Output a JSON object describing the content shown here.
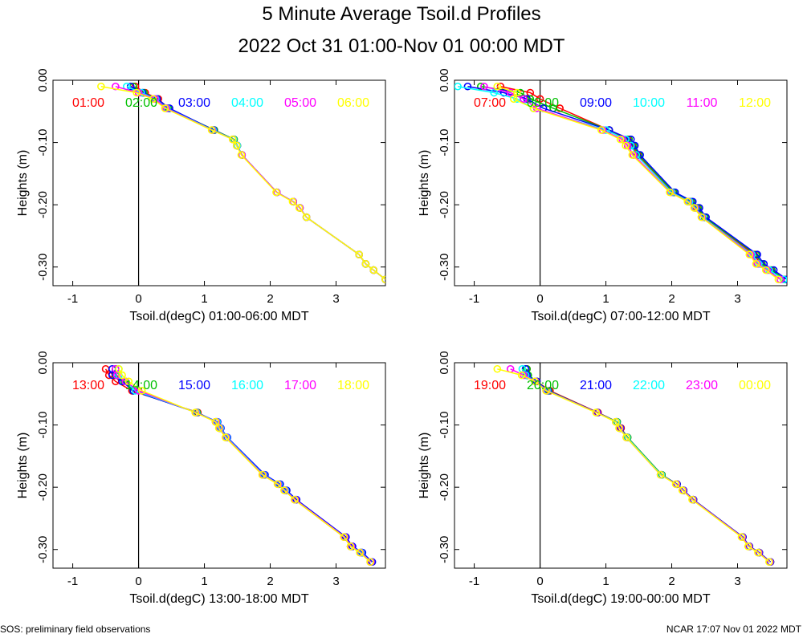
{
  "page": {
    "title": "5 Minute Average Tsoil.d Profiles",
    "subtitle": "2022 Oct 31 01:00-Nov 01 00:00 MDT",
    "footer_left": "SOS: preliminary field observations",
    "footer_right": "NCAR 17:07 Nov 01 2022 MDT"
  },
  "chart_data": [
    {
      "type": "line",
      "xlabel": "Tsoil.d(degC) 01:00-06:00 MDT",
      "ylabel": "Heights (m)",
      "xlim": [
        -1.3,
        3.75
      ],
      "ylim": [
        -0.33,
        0.0
      ],
      "xticks": [
        -1,
        0,
        1,
        2,
        3
      ],
      "yticks": [
        0.0,
        -0.1,
        -0.2,
        -0.3
      ],
      "ytick_labels": [
        "0.00",
        "-0.10",
        "-0.20",
        "-0.30"
      ],
      "heights": [
        -0.01,
        -0.02,
        -0.03,
        -0.045,
        -0.08,
        -0.095,
        -0.105,
        -0.12,
        -0.18,
        -0.195,
        -0.205,
        -0.22,
        -0.28,
        -0.295,
        -0.305,
        -0.32
      ],
      "series": [
        {
          "name": "01:00",
          "color": "#ff0000",
          "x": [
            -0.05,
            0.1,
            0.3,
            0.45,
            1.15,
            1.45,
            1.5,
            1.57,
            2.1,
            2.35,
            2.45,
            2.55,
            3.35,
            3.45,
            3.57,
            3.75
          ]
        },
        {
          "name": "02:00",
          "color": "#00c000",
          "x": [
            -0.08,
            0.08,
            0.28,
            0.45,
            1.15,
            1.45,
            1.5,
            1.57,
            2.1,
            2.35,
            2.45,
            2.55,
            3.35,
            3.45,
            3.57,
            3.75
          ]
        },
        {
          "name": "03:00",
          "color": "#0000ff",
          "x": [
            -0.12,
            0.06,
            0.28,
            0.47,
            1.14,
            1.44,
            1.5,
            1.57,
            2.1,
            2.35,
            2.45,
            2.55,
            3.35,
            3.45,
            3.57,
            3.75
          ]
        },
        {
          "name": "04:00",
          "color": "#00ffff",
          "x": [
            -0.18,
            0.04,
            0.26,
            0.43,
            1.13,
            1.44,
            1.5,
            1.57,
            2.1,
            2.35,
            2.45,
            2.55,
            3.35,
            3.45,
            3.57,
            3.75
          ]
        },
        {
          "name": "05:00",
          "color": "#ff00ff",
          "x": [
            -0.35,
            0.0,
            0.25,
            0.42,
            1.12,
            1.43,
            1.49,
            1.57,
            2.1,
            2.35,
            2.45,
            2.55,
            3.35,
            3.45,
            3.57,
            3.75
          ]
        },
        {
          "name": "06:00",
          "color": "#ffff00",
          "x": [
            -0.57,
            -0.03,
            0.22,
            0.4,
            1.11,
            1.43,
            1.49,
            1.56,
            2.09,
            2.34,
            2.44,
            2.55,
            3.35,
            3.45,
            3.57,
            3.75
          ]
        }
      ]
    },
    {
      "type": "line",
      "xlabel": "Tsoil.d(degC) 07:00-12:00 MDT",
      "ylabel": "Heights (m)",
      "xlim": [
        -1.3,
        3.75
      ],
      "ylim": [
        -0.33,
        0.0
      ],
      "xticks": [
        -1,
        0,
        1,
        2,
        3
      ],
      "yticks": [
        0.0,
        -0.1,
        -0.2,
        -0.3
      ],
      "ytick_labels": [
        "0.00",
        "-0.10",
        "-0.20",
        "-0.30"
      ],
      "heights": [
        -0.01,
        -0.02,
        -0.03,
        -0.045,
        -0.08,
        -0.095,
        -0.105,
        -0.12,
        -0.18,
        -0.195,
        -0.205,
        -0.22,
        -0.28,
        -0.295,
        -0.305,
        -0.32
      ],
      "series": [
        {
          "name": "07:00",
          "color": "#ff0000",
          "x": [
            -0.6,
            -0.15,
            0.0,
            0.3,
            1.05,
            1.33,
            1.4,
            1.48,
            2.02,
            2.28,
            2.38,
            2.5,
            3.25,
            3.35,
            3.5,
            3.7
          ]
        },
        {
          "name": "08:00",
          "color": "#00c000",
          "x": [
            -0.9,
            -0.3,
            -0.15,
            0.2,
            1.05,
            1.35,
            1.42,
            1.5,
            2.03,
            2.3,
            2.4,
            2.5,
            3.28,
            3.37,
            3.52,
            3.72
          ]
        },
        {
          "name": "09:00",
          "color": "#0000ff",
          "x": [
            -1.1,
            -0.55,
            -0.2,
            0.05,
            1.05,
            1.38,
            1.44,
            1.52,
            2.05,
            2.32,
            2.42,
            2.52,
            3.3,
            3.4,
            3.55,
            3.75
          ]
        },
        {
          "name": "10:00",
          "color": "#00ffff",
          "x": [
            -1.25,
            -0.7,
            -0.35,
            -0.1,
            1.0,
            1.3,
            1.38,
            1.46,
            2.0,
            2.27,
            2.36,
            2.47,
            3.22,
            3.32,
            3.48,
            3.7
          ]
        },
        {
          "name": "11:00",
          "color": "#ff00ff",
          "x": [
            -0.85,
            -0.45,
            -0.25,
            -0.05,
            0.95,
            1.25,
            1.33,
            1.42,
            1.98,
            2.25,
            2.35,
            2.46,
            3.2,
            3.3,
            3.45,
            3.65
          ]
        },
        {
          "name": "12:00",
          "color": "#ffff00",
          "x": [
            -0.65,
            -0.35,
            -0.4,
            -0.1,
            0.93,
            1.22,
            1.3,
            1.4,
            1.97,
            2.24,
            2.34,
            2.45,
            3.18,
            3.28,
            3.43,
            3.62
          ]
        }
      ]
    },
    {
      "type": "line",
      "xlabel": "Tsoil.d(degC) 13:00-18:00 MDT",
      "ylabel": "Heights (m)",
      "xlim": [
        -1.3,
        3.75
      ],
      "ylim": [
        -0.33,
        0.0
      ],
      "xticks": [
        -1,
        0,
        1,
        2,
        3
      ],
      "yticks": [
        0.0,
        -0.1,
        -0.2,
        -0.3
      ],
      "ytick_labels": [
        "0.00",
        "-0.10",
        "-0.20",
        "-0.30"
      ],
      "heights": [
        -0.01,
        -0.02,
        -0.03,
        -0.045,
        -0.08,
        -0.095,
        -0.105,
        -0.12,
        -0.18,
        -0.195,
        -0.205,
        -0.22,
        -0.28,
        -0.295,
        -0.305,
        -0.32
      ],
      "series": [
        {
          "name": "13:00",
          "color": "#ff0000",
          "x": [
            -0.5,
            -0.45,
            -0.35,
            -0.1,
            0.9,
            1.17,
            1.23,
            1.33,
            1.88,
            2.12,
            2.22,
            2.37,
            3.12,
            3.22,
            3.37,
            3.52
          ]
        },
        {
          "name": "14:00",
          "color": "#00c000",
          "x": [
            -0.35,
            -0.35,
            -0.22,
            -0.08,
            0.89,
            1.18,
            1.24,
            1.34,
            1.9,
            2.14,
            2.24,
            2.39,
            3.14,
            3.24,
            3.39,
            3.54
          ]
        },
        {
          "name": "15:00",
          "color": "#0000ff",
          "x": [
            -0.4,
            -0.4,
            -0.25,
            -0.08,
            0.88,
            1.2,
            1.25,
            1.35,
            1.92,
            2.15,
            2.25,
            2.4,
            3.15,
            3.25,
            3.4,
            3.55
          ]
        },
        {
          "name": "16:00",
          "color": "#00ffff",
          "x": [
            -0.3,
            -0.3,
            -0.2,
            -0.05,
            0.88,
            1.19,
            1.24,
            1.34,
            1.9,
            2.13,
            2.23,
            2.38,
            3.13,
            3.23,
            3.38,
            3.53
          ]
        },
        {
          "name": "17:00",
          "color": "#ff00ff",
          "x": [
            -0.35,
            -0.33,
            -0.2,
            0.0,
            0.87,
            1.18,
            1.23,
            1.33,
            1.89,
            2.12,
            2.22,
            2.38,
            3.13,
            3.23,
            3.37,
            3.53
          ]
        },
        {
          "name": "18:00",
          "color": "#ffff00",
          "x": [
            -0.3,
            -0.25,
            -0.15,
            0.05,
            0.86,
            1.17,
            1.22,
            1.32,
            1.88,
            2.11,
            2.21,
            2.37,
            3.12,
            3.22,
            3.36,
            3.52
          ]
        }
      ]
    },
    {
      "type": "line",
      "xlabel": "Tsoil.d(degC) 19:00-00:00 MDT",
      "ylabel": "Heights (m)",
      "xlim": [
        -1.3,
        3.75
      ],
      "ylim": [
        -0.33,
        0.0
      ],
      "xticks": [
        -1,
        0,
        1,
        2,
        3
      ],
      "yticks": [
        0.0,
        -0.1,
        -0.2,
        -0.3
      ],
      "ytick_labels": [
        "0.00",
        "-0.10",
        "-0.20",
        "-0.30"
      ],
      "heights": [
        -0.01,
        -0.02,
        -0.03,
        -0.045,
        -0.08,
        -0.095,
        -0.105,
        -0.12,
        -0.18,
        -0.195,
        -0.205,
        -0.22,
        -0.28,
        -0.295,
        -0.305,
        -0.32
      ],
      "series": [
        {
          "name": "19:00",
          "color": "#ff0000",
          "x": [
            -0.2,
            -0.2,
            -0.05,
            0.15,
            0.88,
            1.17,
            1.23,
            1.33,
            1.85,
            2.08,
            2.18,
            2.33,
            3.08,
            3.18,
            3.33,
            3.5
          ]
        },
        {
          "name": "20:00",
          "color": "#00c000",
          "x": [
            -0.2,
            -0.18,
            -0.05,
            0.13,
            0.87,
            1.17,
            1.22,
            1.33,
            1.85,
            2.08,
            2.18,
            2.33,
            3.08,
            3.18,
            3.33,
            3.5
          ]
        },
        {
          "name": "21:00",
          "color": "#0000ff",
          "x": [
            -0.22,
            -0.2,
            -0.05,
            0.12,
            0.87,
            1.16,
            1.22,
            1.32,
            1.84,
            2.08,
            2.18,
            2.33,
            3.08,
            3.18,
            3.33,
            3.5
          ]
        },
        {
          "name": "22:00",
          "color": "#00ffff",
          "x": [
            -0.27,
            -0.22,
            -0.07,
            0.11,
            0.86,
            1.16,
            1.21,
            1.32,
            1.84,
            2.07,
            2.17,
            2.32,
            3.07,
            3.17,
            3.32,
            3.49
          ]
        },
        {
          "name": "23:00",
          "color": "#ff00ff",
          "x": [
            -0.45,
            -0.25,
            -0.07,
            0.1,
            0.86,
            1.15,
            1.21,
            1.31,
            1.83,
            2.07,
            2.17,
            2.32,
            3.07,
            3.17,
            3.32,
            3.49
          ]
        },
        {
          "name": "00:00",
          "color": "#ffff00",
          "x": [
            -0.65,
            -0.28,
            -0.08,
            0.09,
            0.85,
            1.15,
            1.2,
            1.31,
            1.83,
            2.06,
            2.16,
            2.31,
            3.06,
            3.16,
            3.31,
            3.48
          ]
        }
      ]
    }
  ]
}
